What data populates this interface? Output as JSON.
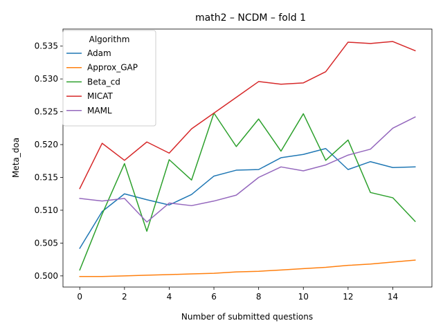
{
  "chart_data": {
    "type": "line",
    "title": "math2 – NCDM – fold 1",
    "xlabel": "Number of submitted questions",
    "ylabel": "Meta_doa",
    "xlim": [
      -0.75,
      15.75
    ],
    "ylim": [
      0.4983,
      0.5376
    ],
    "x_ticks": [
      0,
      2,
      4,
      6,
      8,
      10,
      12,
      14
    ],
    "y_ticks": [
      0.5,
      0.505,
      0.51,
      0.515,
      0.52,
      0.525,
      0.53,
      0.535
    ],
    "y_tick_labels": [
      "0.500",
      "0.505",
      "0.510",
      "0.515",
      "0.520",
      "0.525",
      "0.530",
      "0.535"
    ],
    "grid": false,
    "legend": {
      "title": "Algorithm",
      "placement": "upper-left"
    },
    "x": [
      0,
      1,
      2,
      3,
      4,
      5,
      6,
      7,
      8,
      9,
      10,
      11,
      12,
      13,
      14,
      15
    ],
    "series": [
      {
        "name": "Adam",
        "color": "#1f77b4",
        "values": [
          0.5042,
          0.5098,
          0.5125,
          0.5116,
          0.5108,
          0.5124,
          0.5152,
          0.5161,
          0.5162,
          0.518,
          0.5185,
          0.5194,
          0.5162,
          0.5174,
          0.5165,
          0.5166
        ]
      },
      {
        "name": "Approx_GAP",
        "color": "#ff7f0e",
        "values": [
          0.4999,
          0.4999,
          0.5,
          0.5001,
          0.5002,
          0.5003,
          0.5004,
          0.5006,
          0.5007,
          0.5009,
          0.5011,
          0.5013,
          0.5016,
          0.5018,
          0.5021,
          0.5024
        ]
      },
      {
        "name": "Beta_cd",
        "color": "#2ca02c",
        "values": [
          0.5009,
          0.5094,
          0.5171,
          0.5068,
          0.5177,
          0.5146,
          0.5248,
          0.5197,
          0.5239,
          0.519,
          0.5247,
          0.5176,
          0.5207,
          0.5127,
          0.5119,
          0.5083
        ]
      },
      {
        "name": "MICAT",
        "color": "#d62728",
        "values": [
          0.5133,
          0.5202,
          0.5176,
          0.5204,
          0.5187,
          0.5224,
          0.5248,
          0.5272,
          0.5296,
          0.5292,
          0.5294,
          0.5311,
          0.5356,
          0.5354,
          0.5357,
          0.5343
        ]
      },
      {
        "name": "MAML",
        "color": "#9467bd",
        "values": [
          0.5118,
          0.5114,
          0.5118,
          0.5082,
          0.5111,
          0.5107,
          0.5114,
          0.5123,
          0.515,
          0.5166,
          0.516,
          0.5169,
          0.5184,
          0.5193,
          0.5225,
          0.5242
        ]
      }
    ]
  }
}
